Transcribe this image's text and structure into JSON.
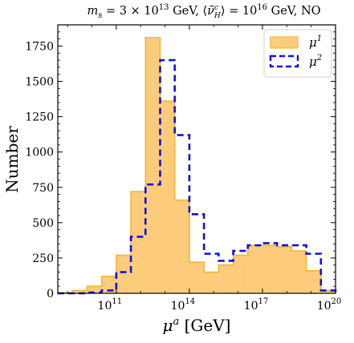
{
  "chart_data": {
    "type": "histogram",
    "title": "m_s = 3 × 10^13 GeV, ⟨ν̃^c_H⟩ = 10^16 GeV, NO",
    "title_parts": {
      "m": "m",
      "m_sub": "s",
      "eq1": " = 3 × 10",
      "exp1": "13",
      "gev1": " GeV, ⟨",
      "nu": "ν̃",
      "nu_sup": "c",
      "nu_sub": "H",
      "eq2": "⟩ = 10",
      "exp2": "16",
      "gev2": " GeV, NO"
    },
    "xlabel": "μ^a [GeV]",
    "xlabel_parts": {
      "mu": "μ",
      "sup": "a",
      "unit": " [GeV]"
    },
    "ylabel": "Number",
    "x_scale": "log10",
    "xlim_log10": [
      8.6,
      20
    ],
    "ylim": [
      0,
      1900
    ],
    "x_ticks": [
      {
        "base": "10",
        "exp": "11",
        "log10": 11
      },
      {
        "base": "10",
        "exp": "14",
        "log10": 14
      },
      {
        "base": "10",
        "exp": "17",
        "log10": 17
      },
      {
        "base": "10",
        "exp": "20",
        "log10": 20
      }
    ],
    "y_ticks": [
      0,
      250,
      500,
      750,
      1000,
      1250,
      1500,
      1750
    ],
    "y_tick_labels": [
      "0",
      "250",
      "500",
      "750",
      "1000",
      "1250",
      "1500",
      "1750"
    ],
    "bin_edges_log10": [
      8.6,
      9.2,
      9.8,
      10.4,
      11.0,
      11.6,
      12.2,
      12.8,
      13.4,
      14.0,
      14.6,
      15.2,
      15.8,
      16.4,
      17.0,
      17.6,
      18.2,
      18.8,
      19.4,
      20.0
    ],
    "series": [
      {
        "name": "μ¹",
        "legend_base": "μ",
        "legend_sup": "1",
        "style": "filled",
        "fill": "#fdcc7a",
        "edge": "#f5b33c",
        "counts": [
          5,
          20,
          50,
          120,
          270,
          720,
          1810,
          1360,
          660,
          220,
          150,
          200,
          270,
          340,
          340,
          330,
          300,
          160,
          20
        ]
      },
      {
        "name": "μ²",
        "legend_base": "μ",
        "legend_sup": "2",
        "style": "dashed-step",
        "color": "#1010e0",
        "counts": [
          0,
          0,
          5,
          20,
          150,
          400,
          770,
          1650,
          1120,
          560,
          280,
          230,
          300,
          340,
          355,
          340,
          340,
          280,
          20
        ]
      }
    ],
    "legend_position": "upper right",
    "grid": false,
    "colors": {
      "fill": "#fdcc7a",
      "fill_edge": "#f5b33c",
      "dashed": "#1010e0"
    }
  }
}
